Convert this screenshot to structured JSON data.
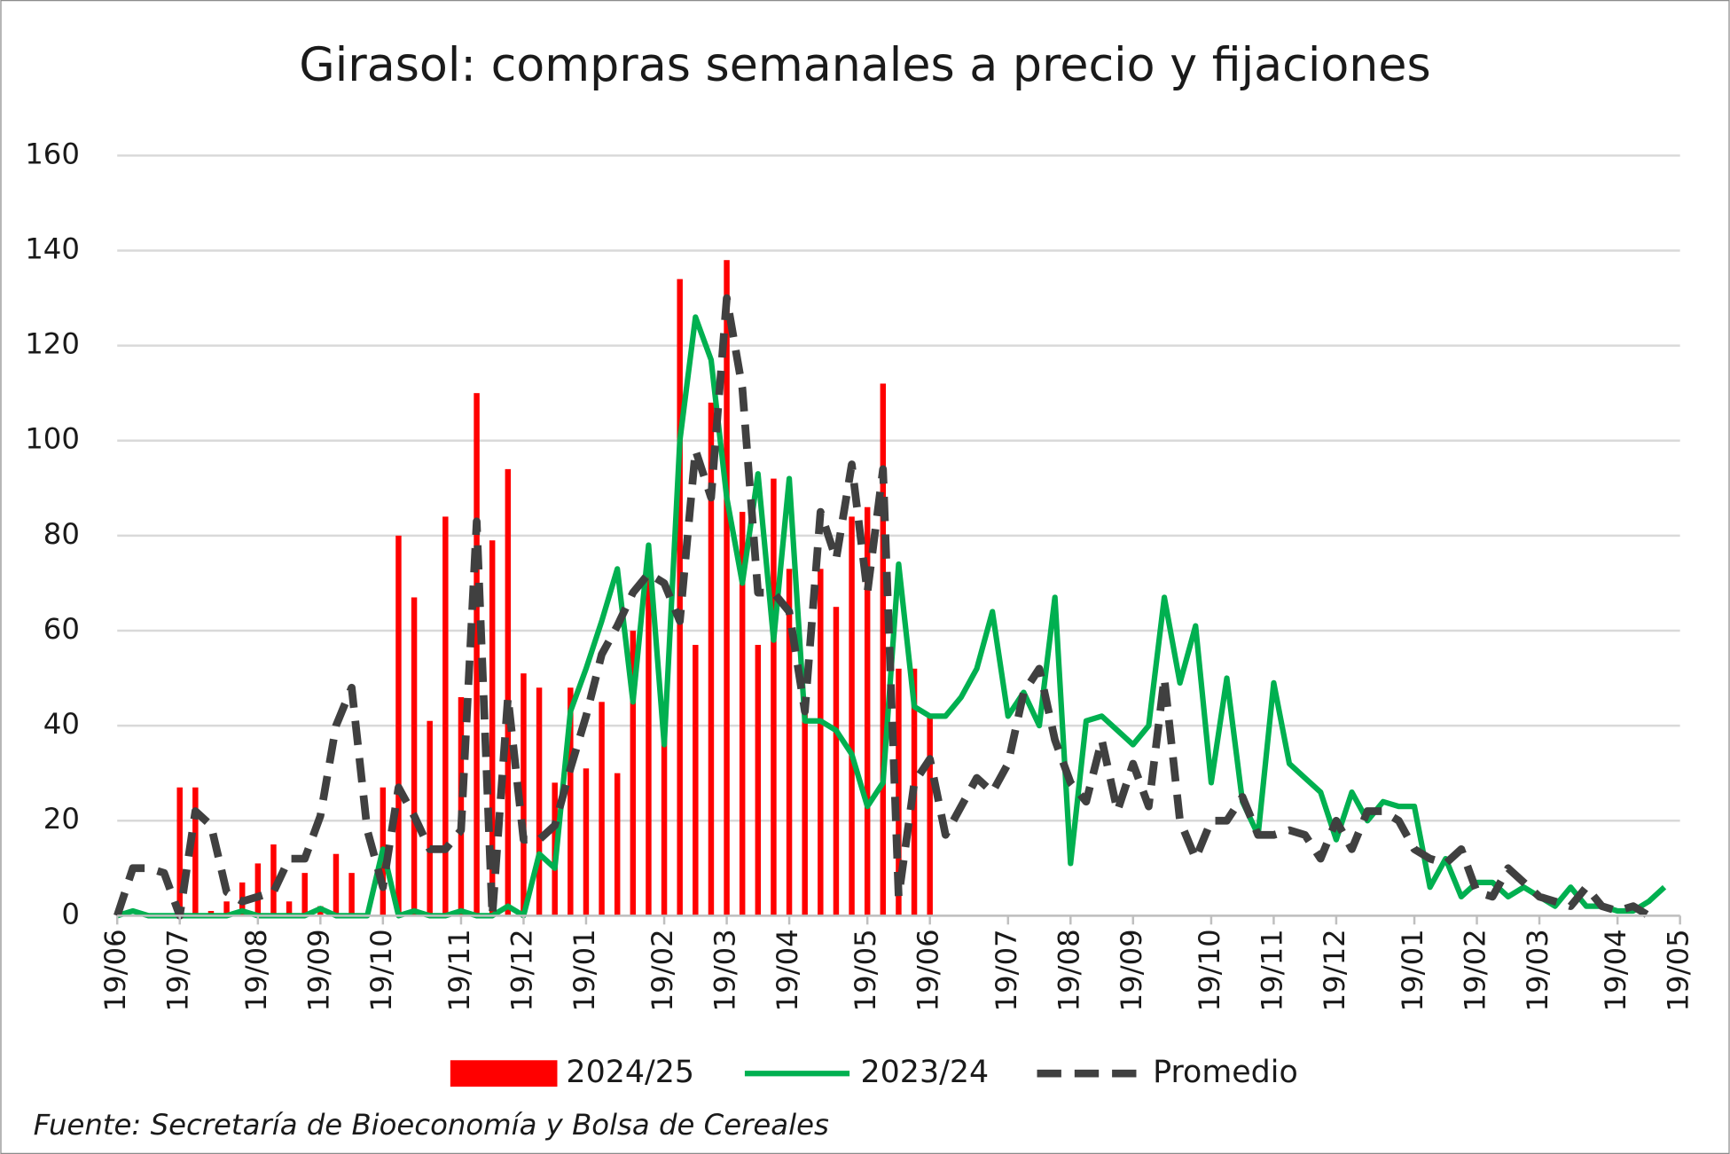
{
  "chart_data": {
    "type": "combo",
    "title": "Girasol: compras semanales a precio y fijaciones",
    "source": "Fuente: Secretaría de Bioeconomía y Bolsa de Cereales",
    "categories": [
      "19/06",
      null,
      null,
      null,
      "19/07",
      null,
      null,
      null,
      null,
      "19/08",
      null,
      null,
      null,
      "19/09",
      null,
      null,
      null,
      "19/10",
      null,
      null,
      null,
      null,
      "19/11",
      null,
      null,
      null,
      "19/12",
      null,
      null,
      null,
      "19/01",
      null,
      null,
      null,
      null,
      "19/02",
      null,
      null,
      null,
      "19/03",
      null,
      null,
      null,
      "19/04",
      null,
      null,
      null,
      null,
      "19/05",
      null,
      null,
      null,
      "19/06",
      null,
      null,
      null,
      null,
      "19/07",
      null,
      null,
      null,
      "19/08",
      null,
      null,
      null,
      "19/09",
      null,
      null,
      null,
      null,
      "19/10",
      null,
      null,
      null,
      "19/11",
      null,
      null,
      null,
      "19/12",
      null,
      null,
      null,
      null,
      "19/01",
      null,
      null,
      null,
      "19/02",
      null,
      null,
      null,
      "19/03",
      null,
      null,
      null,
      null,
      "19/04",
      null,
      null,
      null,
      "19/05"
    ],
    "series": [
      {
        "name": "2024/25",
        "kind": "bar",
        "color": "#ff0000",
        "values": [
          0,
          0,
          0,
          0,
          27,
          27,
          1,
          3,
          7,
          11,
          15,
          3,
          9,
          2,
          13,
          9,
          0,
          27,
          80,
          67,
          41,
          84,
          46,
          110,
          79,
          94,
          51,
          48,
          28,
          48,
          31,
          45,
          30,
          60,
          75,
          40,
          134,
          57,
          108,
          138,
          85,
          57,
          92,
          73,
          45,
          73,
          65,
          84,
          86,
          112,
          52,
          52,
          42,
          null,
          null,
          null,
          null,
          null,
          null,
          null,
          null,
          null,
          null,
          null,
          null,
          null,
          null,
          null,
          null,
          null,
          null,
          null,
          null,
          null,
          null,
          null,
          null,
          null,
          null,
          null,
          null,
          null,
          null,
          null,
          null,
          null,
          null,
          null,
          null,
          null,
          null,
          null,
          null,
          null,
          null,
          null,
          null,
          null,
          null,
          null,
          null
        ]
      },
      {
        "name": "2023/24",
        "kind": "line",
        "color": "#00b050",
        "values": [
          0,
          1,
          0,
          0,
          0,
          0,
          0,
          0,
          1,
          0,
          0,
          0,
          0,
          1.5,
          0,
          0,
          0,
          14,
          0,
          1,
          0,
          0,
          1,
          0,
          0,
          2,
          0,
          13,
          10,
          43,
          52,
          62,
          73,
          45,
          78,
          36,
          100,
          126,
          117,
          88,
          70,
          93,
          58,
          92,
          41,
          41,
          39,
          34,
          23,
          28,
          74,
          44,
          42,
          42,
          46,
          52,
          64,
          42,
          47,
          40,
          67,
          11,
          41,
          42,
          39,
          36,
          40,
          67,
          49,
          61,
          28,
          50,
          24,
          17,
          49,
          32,
          29,
          26,
          16,
          26,
          20,
          24,
          23,
          23,
          6,
          12,
          4,
          7,
          7,
          4,
          6,
          4,
          2,
          6,
          2,
          2,
          1,
          1,
          3,
          6,
          null
        ]
      },
      {
        "name": "Promedio",
        "kind": "dashed",
        "color": "#404040",
        "values": [
          0,
          10,
          10,
          9,
          0,
          22,
          19,
          5,
          3,
          4,
          5,
          12,
          12,
          21,
          40,
          48,
          18,
          6,
          27,
          21,
          14,
          14,
          18,
          83,
          0,
          46,
          16,
          16,
          19,
          31,
          42,
          55,
          61,
          68,
          72,
          70,
          62,
          98,
          88,
          130,
          111,
          68,
          68,
          64,
          43,
          85,
          75,
          95,
          68,
          94,
          4,
          28,
          33,
          17,
          23,
          29,
          26,
          32,
          47,
          52,
          37,
          28,
          24,
          37,
          22,
          32,
          23,
          50,
          20,
          12,
          20,
          20,
          25,
          17,
          17,
          18,
          17,
          12,
          20,
          14,
          22,
          22,
          20,
          14,
          12,
          11,
          14,
          5,
          4,
          10,
          7,
          4,
          3,
          2,
          6,
          2,
          1,
          2,
          0,
          null,
          null
        ]
      }
    ],
    "ylim": [
      0,
      160
    ],
    "yticks": [
      0,
      20,
      40,
      60,
      80,
      100,
      120,
      140,
      160
    ],
    "grid": true,
    "legend": "bottom"
  }
}
